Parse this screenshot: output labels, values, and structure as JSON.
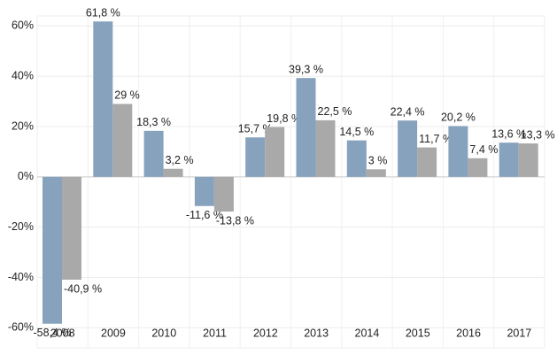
{
  "chart_data": {
    "type": "bar",
    "categories": [
      "2008",
      "2009",
      "2010",
      "2011",
      "2012",
      "2013",
      "2014",
      "2015",
      "2016",
      "2017"
    ],
    "series": [
      {
        "color": "#87a2bd",
        "values": [
          -58.4,
          61.8,
          18.3,
          -11.6,
          15.7,
          39.3,
          14.5,
          22.4,
          20.2,
          13.6
        ],
        "value_labels": [
          "-58,4 %",
          "61,8 %",
          "18,3 %",
          "-11,6 %",
          "15,7 %",
          "39,3 %",
          "14,5 %",
          "22,4 %",
          "20,2 %",
          "13,6 %"
        ]
      },
      {
        "color": "#a9a9a9",
        "values": [
          -40.9,
          29,
          3.2,
          -13.8,
          19.8,
          22.5,
          3,
          11.7,
          7.4,
          13.3
        ],
        "value_labels": [
          "-40,9 %",
          "29 %",
          "3,2 %",
          "-13,8 %",
          "19,8 %",
          "22,5 %",
          "3 %",
          "11,7 %",
          "7,4 %",
          "13,3 %"
        ]
      }
    ],
    "ylim": [
      -68,
      64
    ],
    "yticks": [
      {
        "value": -60,
        "label": "-60%"
      },
      {
        "value": -40,
        "label": "-40%"
      },
      {
        "value": -20,
        "label": "-20%"
      },
      {
        "value": 0,
        "label": "0%"
      },
      {
        "value": 20,
        "label": "20%"
      },
      {
        "value": 40,
        "label": "40%"
      },
      {
        "value": 60,
        "label": "60%"
      }
    ],
    "grid": true
  }
}
